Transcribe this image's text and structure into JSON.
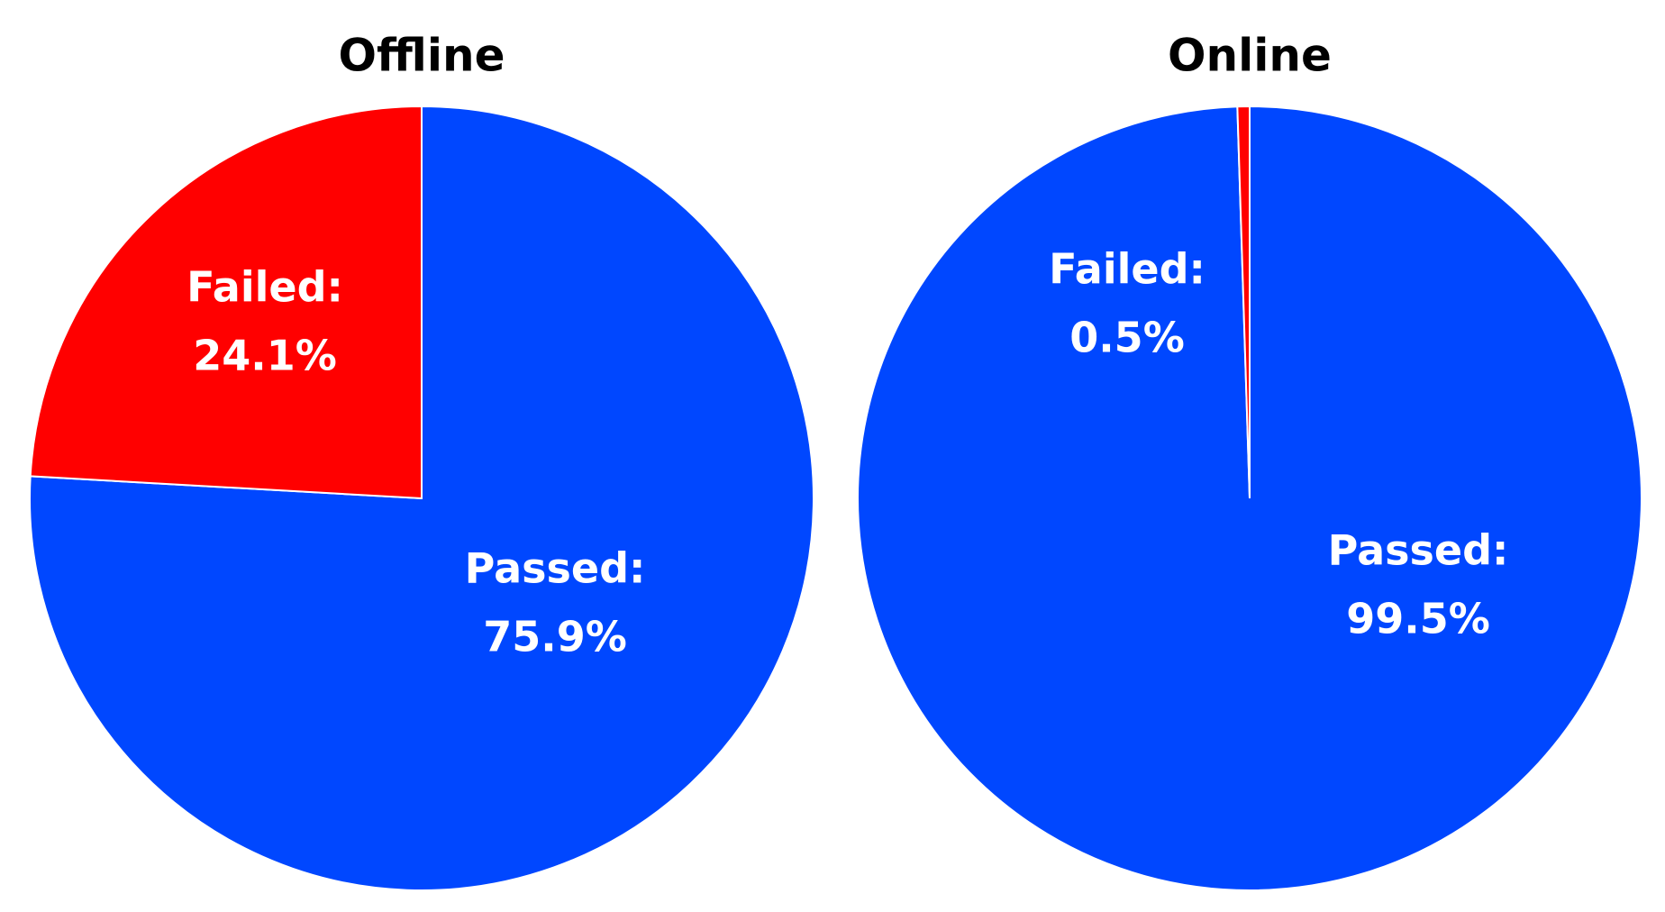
{
  "chart_data": [
    {
      "type": "pie",
      "title": "Offline",
      "categories": [
        "Passed:",
        "Failed:"
      ],
      "values": [
        75.9,
        24.1
      ],
      "value_labels": [
        "75.9%",
        "24.1%"
      ],
      "colors": [
        "#0047ff",
        "#ff0000"
      ]
    },
    {
      "type": "pie",
      "title": "Online",
      "categories": [
        "Passed:",
        "Failed:"
      ],
      "values": [
        99.5,
        0.5
      ],
      "value_labels": [
        "99.5%",
        "0.5%"
      ],
      "colors": [
        "#0047ff",
        "#ff0000"
      ]
    }
  ]
}
